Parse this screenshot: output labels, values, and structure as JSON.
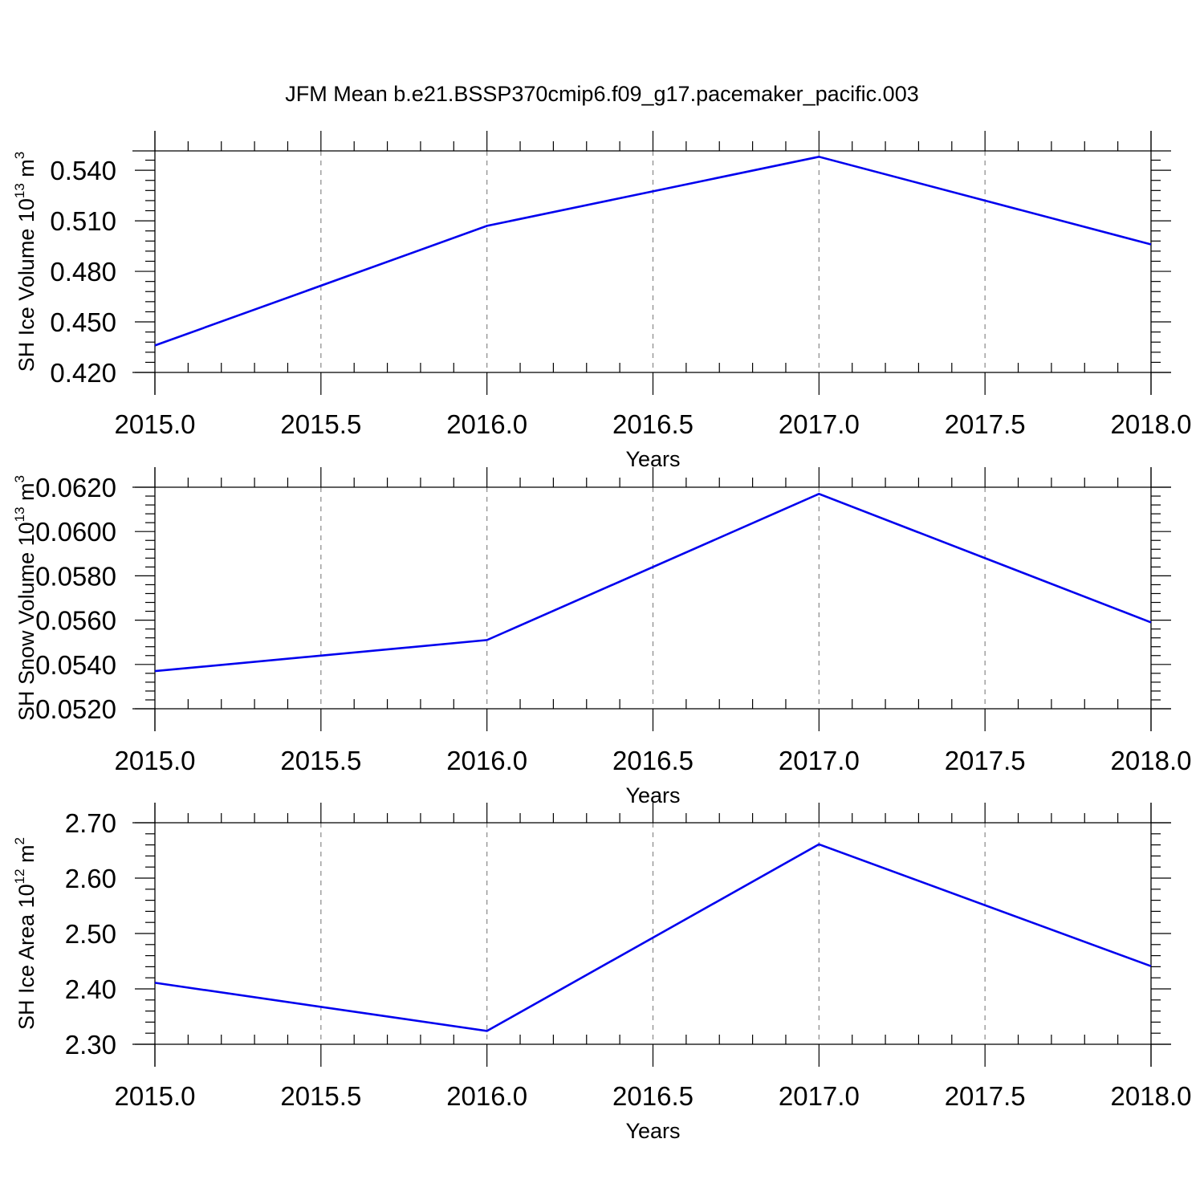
{
  "title": "JFM Mean b.e21.BSSP370cmip6.f09_g17.pacemaker_pacific.003",
  "colors": {
    "line": "#0000ee",
    "axis": "#000000",
    "grid": "#888888"
  },
  "chart_data": [
    {
      "type": "line",
      "x": [
        2015.0,
        2016.0,
        2017.0,
        2018.0
      ],
      "series": [
        {
          "values": [
            0.436,
            0.507,
            0.548,
            0.496
          ]
        }
      ],
      "ylabel": {
        "text": "SH Ice Volume 10",
        "sup": "13",
        "unit": " m",
        "unit_sup": "3"
      },
      "xlabel": "Years",
      "xlim": [
        2015.0,
        2018.0
      ],
      "ylim": [
        0.42,
        0.5515
      ],
      "yticks": [
        0.42,
        0.45,
        0.48,
        0.51,
        0.54
      ],
      "ytick_labels": [
        "0.420",
        "0.450",
        "0.480",
        "0.510",
        "0.540"
      ],
      "xticks": [
        2015.0,
        2015.5,
        2016.0,
        2016.5,
        2017.0,
        2017.5,
        2018.0
      ],
      "xtick_labels": [
        "2015.0",
        "2015.5",
        "2016.0",
        "2016.5",
        "2017.0",
        "2017.5",
        "2018.0"
      ],
      "grid": "vertical-dashed"
    },
    {
      "type": "line",
      "x": [
        2015.0,
        2016.0,
        2017.0,
        2018.0
      ],
      "series": [
        {
          "values": [
            0.0537,
            0.0551,
            0.0617,
            0.0559
          ]
        }
      ],
      "ylabel": {
        "text": "SH Snow Volume 10",
        "sup": "13",
        "unit": " m",
        "unit_sup": "3"
      },
      "xlabel": "Years",
      "xlim": [
        2015.0,
        2018.0
      ],
      "ylim": [
        0.052,
        0.062
      ],
      "yticks": [
        0.052,
        0.054,
        0.056,
        0.058,
        0.06,
        0.062
      ],
      "ytick_labels": [
        "0.0520",
        "0.0540",
        "0.0560",
        "0.0580",
        "0.0600",
        "0.0620"
      ],
      "xticks": [
        2015.0,
        2015.5,
        2016.0,
        2016.5,
        2017.0,
        2017.5,
        2018.0
      ],
      "xtick_labels": [
        "2015.0",
        "2015.5",
        "2016.0",
        "2016.5",
        "2017.0",
        "2017.5",
        "2018.0"
      ],
      "grid": "vertical-dashed"
    },
    {
      "type": "line",
      "x": [
        2015.0,
        2016.0,
        2017.0,
        2018.0
      ],
      "series": [
        {
          "values": [
            2.411,
            2.324,
            2.661,
            2.441
          ]
        }
      ],
      "ylabel": {
        "text": "SH Ice Area 10",
        "sup": "12",
        "unit": " m",
        "unit_sup": "2"
      },
      "xlabel": "Years",
      "xlim": [
        2015.0,
        2018.0
      ],
      "ylim": [
        2.3,
        2.7
      ],
      "yticks": [
        2.3,
        2.4,
        2.5,
        2.6,
        2.7
      ],
      "ytick_labels": [
        "2.30",
        "2.40",
        "2.50",
        "2.60",
        "2.70"
      ],
      "xticks": [
        2015.0,
        2015.5,
        2016.0,
        2016.5,
        2017.0,
        2017.5,
        2018.0
      ],
      "xtick_labels": [
        "2015.0",
        "2015.5",
        "2016.0",
        "2016.5",
        "2017.0",
        "2017.5",
        "2018.0"
      ],
      "grid": "vertical-dashed"
    }
  ]
}
